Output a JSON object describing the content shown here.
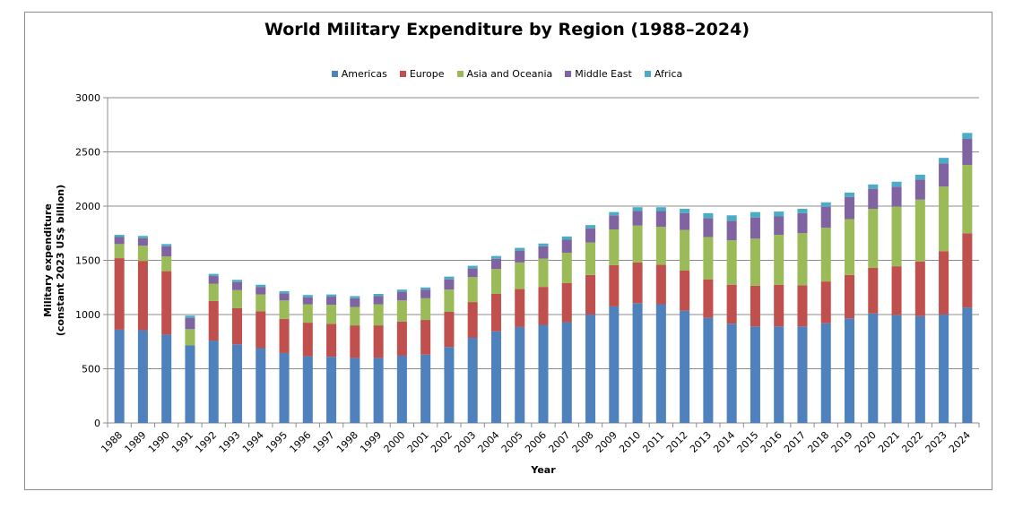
{
  "chart_data": {
    "type": "bar",
    "stacked": true,
    "title": "World Military Expenditure by Region (1988–2024)",
    "xlabel": "Year",
    "ylabel_line1": "Military expenditure",
    "ylabel_line2": "(constant 2023 US$ billion)",
    "ylim": [
      0,
      3000
    ],
    "yticks": [
      0,
      500,
      1000,
      1500,
      2000,
      2500,
      3000
    ],
    "grid": true,
    "legend_position": "top",
    "categories": [
      "1988",
      "1989",
      "1990",
      "1991",
      "1992",
      "1993",
      "1994",
      "1995",
      "1996",
      "1997",
      "1998",
      "1999",
      "2000",
      "2001",
      "2002",
      "2003",
      "2004",
      "2005",
      "2006",
      "2007",
      "2008",
      "2009",
      "2010",
      "2011",
      "2012",
      "2013",
      "2014",
      "2015",
      "2016",
      "2017",
      "2018",
      "2019",
      "2020",
      "2021",
      "2022",
      "2023",
      "2024"
    ],
    "series": [
      {
        "name": "Americas",
        "color": "#4f81bd",
        "values": [
          860,
          855,
          815,
          715,
          760,
          725,
          690,
          645,
          615,
          610,
          600,
          600,
          620,
          630,
          700,
          785,
          845,
          885,
          905,
          930,
          1000,
          1075,
          1105,
          1095,
          1035,
          970,
          915,
          890,
          890,
          890,
          920,
          965,
          1010,
          995,
          985,
          1000,
          1065
        ]
      },
      {
        "name": "Europe",
        "color": "#c0504d",
        "values": [
          660,
          640,
          585,
          0,
          365,
          335,
          340,
          315,
          310,
          305,
          300,
          300,
          315,
          320,
          325,
          330,
          345,
          350,
          350,
          360,
          365,
          380,
          375,
          365,
          370,
          355,
          360,
          375,
          385,
          380,
          385,
          400,
          420,
          450,
          505,
          585,
          685
        ]
      },
      {
        "name": "Asia and Oceania",
        "color": "#9bbb59",
        "values": [
          130,
          140,
          135,
          150,
          160,
          165,
          155,
          170,
          170,
          175,
          170,
          195,
          195,
          200,
          205,
          230,
          230,
          245,
          260,
          280,
          300,
          330,
          340,
          350,
          375,
          390,
          410,
          435,
          460,
          480,
          495,
          515,
          545,
          550,
          570,
          595,
          630
        ]
      },
      {
        "name": "Middle East",
        "color": "#8064a2",
        "values": [
          65,
          70,
          95,
          105,
          70,
          75,
          70,
          65,
          65,
          75,
          80,
          75,
          80,
          80,
          95,
          80,
          95,
          110,
          115,
          120,
          130,
          130,
          135,
          145,
          155,
          175,
          180,
          195,
          170,
          185,
          195,
          205,
          185,
          185,
          185,
          215,
          240
        ]
      },
      {
        "name": "Africa",
        "color": "#4bacc6",
        "values": [
          20,
          20,
          20,
          20,
          20,
          20,
          20,
          20,
          20,
          20,
          20,
          20,
          20,
          20,
          25,
          25,
          25,
          25,
          25,
          30,
          30,
          30,
          35,
          35,
          40,
          45,
          50,
          50,
          45,
          40,
          40,
          40,
          40,
          45,
          45,
          50,
          55
        ]
      }
    ]
  }
}
